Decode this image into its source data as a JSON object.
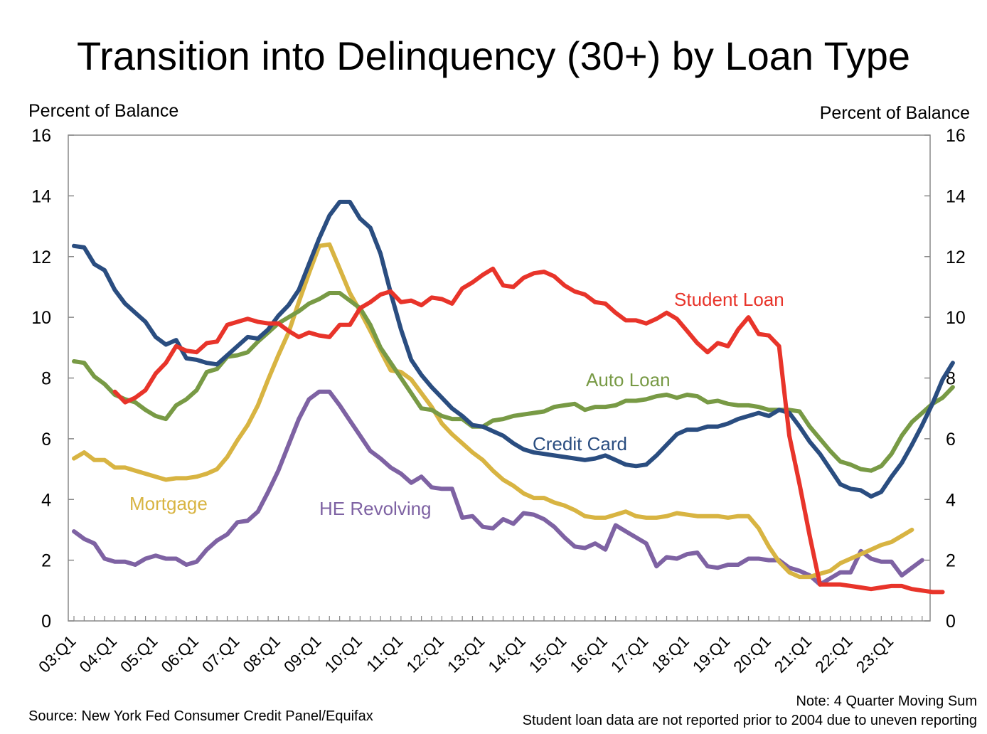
{
  "chart_data": {
    "type": "line",
    "title": "Transition into Delinquency (30+) by Loan Type",
    "ylabel_left": "Percent of Balance",
    "ylabel_right": "Percent of Balance",
    "ylim": [
      0,
      16
    ],
    "yticks": [
      "0",
      "2",
      "4",
      "6",
      "8",
      "10",
      "12",
      "14",
      "16"
    ],
    "xlim_quarters": [
      0,
      83
    ],
    "xticks": [
      "03:Q1",
      "04:Q1",
      "05:Q1",
      "06:Q1",
      "07:Q1",
      "08:Q1",
      "09:Q1",
      "10:Q1",
      "11:Q1",
      "12:Q1",
      "13:Q1",
      "14:Q1",
      "15:Q1",
      "16:Q1",
      "17:Q1",
      "18:Q1",
      "19:Q1",
      "20:Q1",
      "21:Q1",
      "22:Q1",
      "23:Q1"
    ],
    "grid": false,
    "series": [
      {
        "name": "Credit Card",
        "color": "#2a4d80",
        "start_quarter": 0,
        "values": [
          12.35,
          12.3,
          11.75,
          11.55,
          10.9,
          10.45,
          10.15,
          9.85,
          9.35,
          9.1,
          9.25,
          8.65,
          8.6,
          8.5,
          8.45,
          8.75,
          9.05,
          9.35,
          9.3,
          9.6,
          10.05,
          10.4,
          10.9,
          11.75,
          12.6,
          13.35,
          13.8,
          13.8,
          13.25,
          12.95,
          12.1,
          10.8,
          9.6,
          8.6,
          8.1,
          7.7,
          7.35,
          7.0,
          6.75,
          6.45,
          6.4,
          6.25,
          6.1,
          5.85,
          5.65,
          5.55,
          5.5,
          5.45,
          5.4,
          5.35,
          5.3,
          5.35,
          5.45,
          5.3,
          5.15,
          5.1,
          5.15,
          5.45,
          5.8,
          6.15,
          6.3,
          6.3,
          6.4,
          6.4,
          6.5,
          6.65,
          6.75,
          6.85,
          6.75,
          6.95,
          6.85,
          6.4,
          5.9,
          5.5,
          5.0,
          4.5,
          4.35,
          4.3,
          4.1,
          4.25,
          4.75,
          5.2,
          5.8,
          6.45,
          7.15,
          7.95,
          8.5
        ]
      },
      {
        "name": "Auto Loan",
        "color": "#789a45",
        "start_quarter": 0,
        "values": [
          8.55,
          8.5,
          8.05,
          7.8,
          7.45,
          7.3,
          7.2,
          6.95,
          6.75,
          6.65,
          7.1,
          7.3,
          7.6,
          8.2,
          8.3,
          8.7,
          8.75,
          8.85,
          9.2,
          9.5,
          9.8,
          10.0,
          10.2,
          10.45,
          10.6,
          10.8,
          10.8,
          10.55,
          10.3,
          9.75,
          9.0,
          8.5,
          8.0,
          7.5,
          7.0,
          6.95,
          6.75,
          6.65,
          6.65,
          6.4,
          6.4,
          6.6,
          6.65,
          6.75,
          6.8,
          6.85,
          6.9,
          7.05,
          7.1,
          7.15,
          6.95,
          7.05,
          7.05,
          7.1,
          7.25,
          7.25,
          7.3,
          7.4,
          7.45,
          7.35,
          7.45,
          7.4,
          7.2,
          7.25,
          7.15,
          7.1,
          7.1,
          7.05,
          6.95,
          6.95,
          6.95,
          6.9,
          6.4,
          6.0,
          5.6,
          5.25,
          5.15,
          5.0,
          4.95,
          5.1,
          5.5,
          6.1,
          6.55,
          6.85,
          7.15,
          7.35,
          7.7
        ]
      },
      {
        "name": "Mortgage",
        "color": "#d8b442",
        "start_quarter": 0,
        "values": [
          5.35,
          5.55,
          5.3,
          5.3,
          5.05,
          5.05,
          4.95,
          4.85,
          4.75,
          4.65,
          4.7,
          4.7,
          4.75,
          4.85,
          5.0,
          5.4,
          5.95,
          6.45,
          7.1,
          7.95,
          8.75,
          9.5,
          10.5,
          11.45,
          12.35,
          12.4,
          11.6,
          10.8,
          10.2,
          9.55,
          8.9,
          8.25,
          8.2,
          7.95,
          7.5,
          7.05,
          6.5,
          6.15,
          5.85,
          5.55,
          5.3,
          4.95,
          4.65,
          4.45,
          4.2,
          4.05,
          4.05,
          3.9,
          3.8,
          3.65,
          3.45,
          3.4,
          3.4,
          3.5,
          3.6,
          3.45,
          3.4,
          3.4,
          3.45,
          3.55,
          3.5,
          3.45,
          3.45,
          3.45,
          3.4,
          3.45,
          3.45,
          3.05,
          2.45,
          1.95,
          1.6,
          1.45,
          1.45,
          1.55,
          1.65,
          1.9,
          2.05,
          2.2,
          2.35,
          2.5,
          2.6,
          2.8,
          3.0
        ]
      },
      {
        "name": "HE Revolving",
        "color": "#7e62a3",
        "start_quarter": 0,
        "values": [
          2.95,
          2.7,
          2.55,
          2.05,
          1.95,
          1.95,
          1.85,
          2.05,
          2.15,
          2.05,
          2.05,
          1.85,
          1.95,
          2.35,
          2.65,
          2.85,
          3.25,
          3.3,
          3.6,
          4.25,
          4.95,
          5.8,
          6.65,
          7.3,
          7.55,
          7.55,
          7.1,
          6.6,
          6.1,
          5.6,
          5.35,
          5.05,
          4.85,
          4.55,
          4.75,
          4.4,
          4.35,
          4.35,
          3.4,
          3.45,
          3.1,
          3.05,
          3.35,
          3.2,
          3.55,
          3.5,
          3.35,
          3.1,
          2.75,
          2.45,
          2.4,
          2.55,
          2.35,
          3.15,
          2.95,
          2.75,
          2.55,
          1.8,
          2.1,
          2.05,
          2.2,
          2.25,
          1.8,
          1.75,
          1.85,
          1.85,
          2.05,
          2.05,
          2.0,
          2.0,
          1.75,
          1.65,
          1.5,
          1.2,
          1.4,
          1.6,
          1.6,
          2.3,
          2.05,
          1.95,
          1.95,
          1.5,
          1.75,
          2.0
        ]
      },
      {
        "name": "Student Loan",
        "color": "#e8342a",
        "start_quarter": 4,
        "values": [
          7.55,
          7.2,
          7.35,
          7.6,
          8.15,
          8.5,
          9.05,
          8.9,
          8.85,
          9.15,
          9.2,
          9.75,
          9.85,
          9.95,
          9.85,
          9.8,
          9.8,
          9.55,
          9.35,
          9.5,
          9.4,
          9.35,
          9.75,
          9.75,
          10.3,
          10.5,
          10.75,
          10.85,
          10.5,
          10.55,
          10.4,
          10.65,
          10.6,
          10.45,
          10.95,
          11.15,
          11.4,
          11.6,
          11.05,
          11.0,
          11.3,
          11.45,
          11.5,
          11.35,
          11.05,
          10.85,
          10.75,
          10.5,
          10.45,
          10.15,
          9.9,
          9.9,
          9.8,
          9.95,
          10.15,
          9.95,
          9.55,
          9.15,
          8.85,
          9.15,
          9.05,
          9.6,
          10.0,
          9.45,
          9.4,
          9.05,
          6.1,
          4.5,
          2.8,
          1.2,
          1.2,
          1.2,
          1.15,
          1.1,
          1.05,
          1.1,
          1.15,
          1.15,
          1.05,
          1.0,
          0.95,
          0.95
        ]
      }
    ],
    "series_labels": [
      "Student Loan",
      "Auto Loan",
      "Credit Card",
      "Mortgage",
      "HE Revolving"
    ],
    "notes": {
      "source": "Source: New York Fed Consumer Credit Panel/Equifax",
      "note_1": "Note: 4 Quarter Moving Sum",
      "note_2": "Student loan data are not reported prior to 2004 due to uneven reporting"
    }
  }
}
